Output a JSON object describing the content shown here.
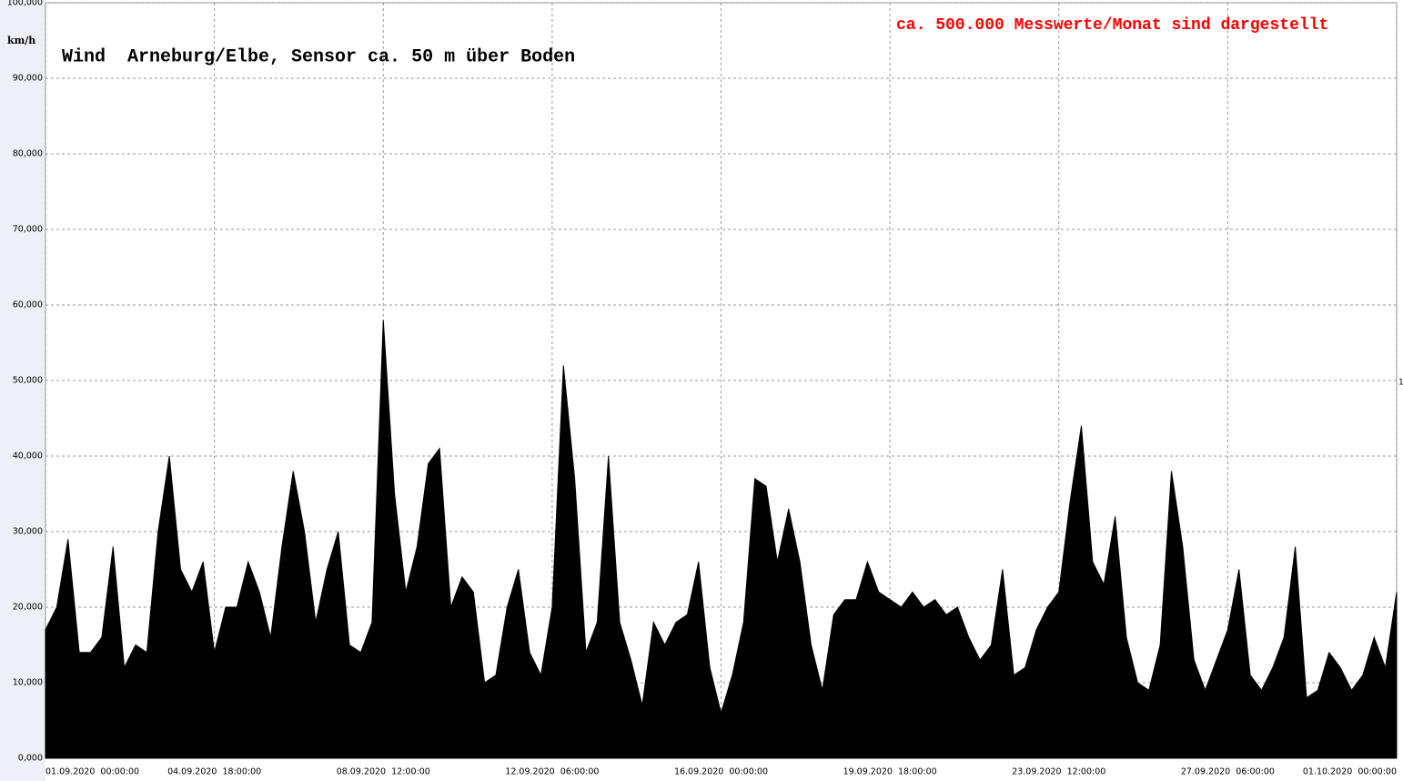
{
  "chart_data": {
    "type": "area",
    "title": "Wind  Arneburg/Elbe, Sensor ca. 50 m über Boden",
    "annotation": "ca. 500.000 Messwerte/Monat sind dargestellt",
    "y_label": "km/h",
    "right_marker": "1",
    "color": "#000000",
    "grid": true,
    "xlim": [
      0,
      720
    ],
    "ylim": [
      0,
      100
    ],
    "xticks": [
      {
        "value": 0,
        "label": "01.09.2020  00:00:00"
      },
      {
        "value": 90,
        "label": "04.09.2020  18:00:00"
      },
      {
        "value": 180,
        "label": "08.09.2020  12:00:00"
      },
      {
        "value": 270,
        "label": "12.09.2020  06:00:00"
      },
      {
        "value": 360,
        "label": "16.09.2020  00:00:00"
      },
      {
        "value": 450,
        "label": "19.09.2020  18:00:00"
      },
      {
        "value": 540,
        "label": "23.09.2020  12:00:00"
      },
      {
        "value": 630,
        "label": "27.09.2020  06:00:00"
      },
      {
        "value": 720,
        "label": "01.10.2020  00:00:00"
      }
    ],
    "yticks": [
      {
        "value": 0,
        "label": "0,000"
      },
      {
        "value": 10,
        "label": "10,000"
      },
      {
        "value": 20,
        "label": "20,000"
      },
      {
        "value": 30,
        "label": "30,000"
      },
      {
        "value": 40,
        "label": "40,000"
      },
      {
        "value": 50,
        "label": "50,000"
      },
      {
        "value": 60,
        "label": "60,000"
      },
      {
        "value": 70,
        "label": "70,000"
      },
      {
        "value": 80,
        "label": "80,000"
      },
      {
        "value": 90,
        "label": "90,000"
      },
      {
        "value": 100,
        "label": "100,000"
      }
    ],
    "x": [
      0,
      6,
      12,
      18,
      24,
      30,
      36,
      42,
      48,
      54,
      60,
      66,
      72,
      78,
      84,
      90,
      96,
      102,
      108,
      114,
      120,
      126,
      132,
      138,
      144,
      150,
      156,
      162,
      168,
      174,
      180,
      186,
      192,
      198,
      204,
      210,
      216,
      222,
      228,
      234,
      240,
      246,
      252,
      258,
      264,
      270,
      276,
      282,
      288,
      294,
      300,
      306,
      312,
      318,
      324,
      330,
      336,
      342,
      348,
      354,
      360,
      366,
      372,
      378,
      384,
      390,
      396,
      402,
      408,
      414,
      420,
      426,
      432,
      438,
      444,
      450,
      456,
      462,
      468,
      474,
      480,
      486,
      492,
      498,
      504,
      510,
      516,
      522,
      528,
      534,
      540,
      546,
      552,
      558,
      564,
      570,
      576,
      582,
      588,
      594,
      600,
      606,
      612,
      618,
      624,
      630,
      636,
      642,
      648,
      654,
      660,
      666,
      672,
      678,
      684,
      690,
      696,
      702,
      708,
      714,
      720
    ],
    "values": [
      17,
      20,
      29,
      14,
      14,
      16,
      28,
      12,
      15,
      14,
      30,
      40,
      25,
      22,
      26,
      14,
      20,
      20,
      26,
      22,
      16,
      28,
      38,
      30,
      18,
      25,
      30,
      15,
      14,
      18,
      58,
      35,
      22,
      28,
      39,
      41,
      20,
      24,
      22,
      10,
      11,
      20,
      25,
      14,
      11,
      20,
      52,
      37,
      14,
      18,
      40,
      18,
      13,
      7,
      18,
      15,
      18,
      19,
      26,
      12,
      6,
      11,
      18,
      37,
      36,
      26,
      33,
      26,
      15,
      9,
      19,
      21,
      21,
      26,
      22,
      21,
      20,
      22,
      20,
      21,
      19,
      20,
      16,
      13,
      15,
      25,
      11,
      12,
      17,
      20,
      22,
      34,
      44,
      26,
      23,
      32,
      16,
      10,
      9,
      15,
      38,
      28,
      13,
      9,
      13,
      17,
      25,
      11,
      9,
      12,
      16,
      28,
      8,
      9,
      14,
      12,
      9,
      11,
      16,
      12,
      22
    ]
  }
}
